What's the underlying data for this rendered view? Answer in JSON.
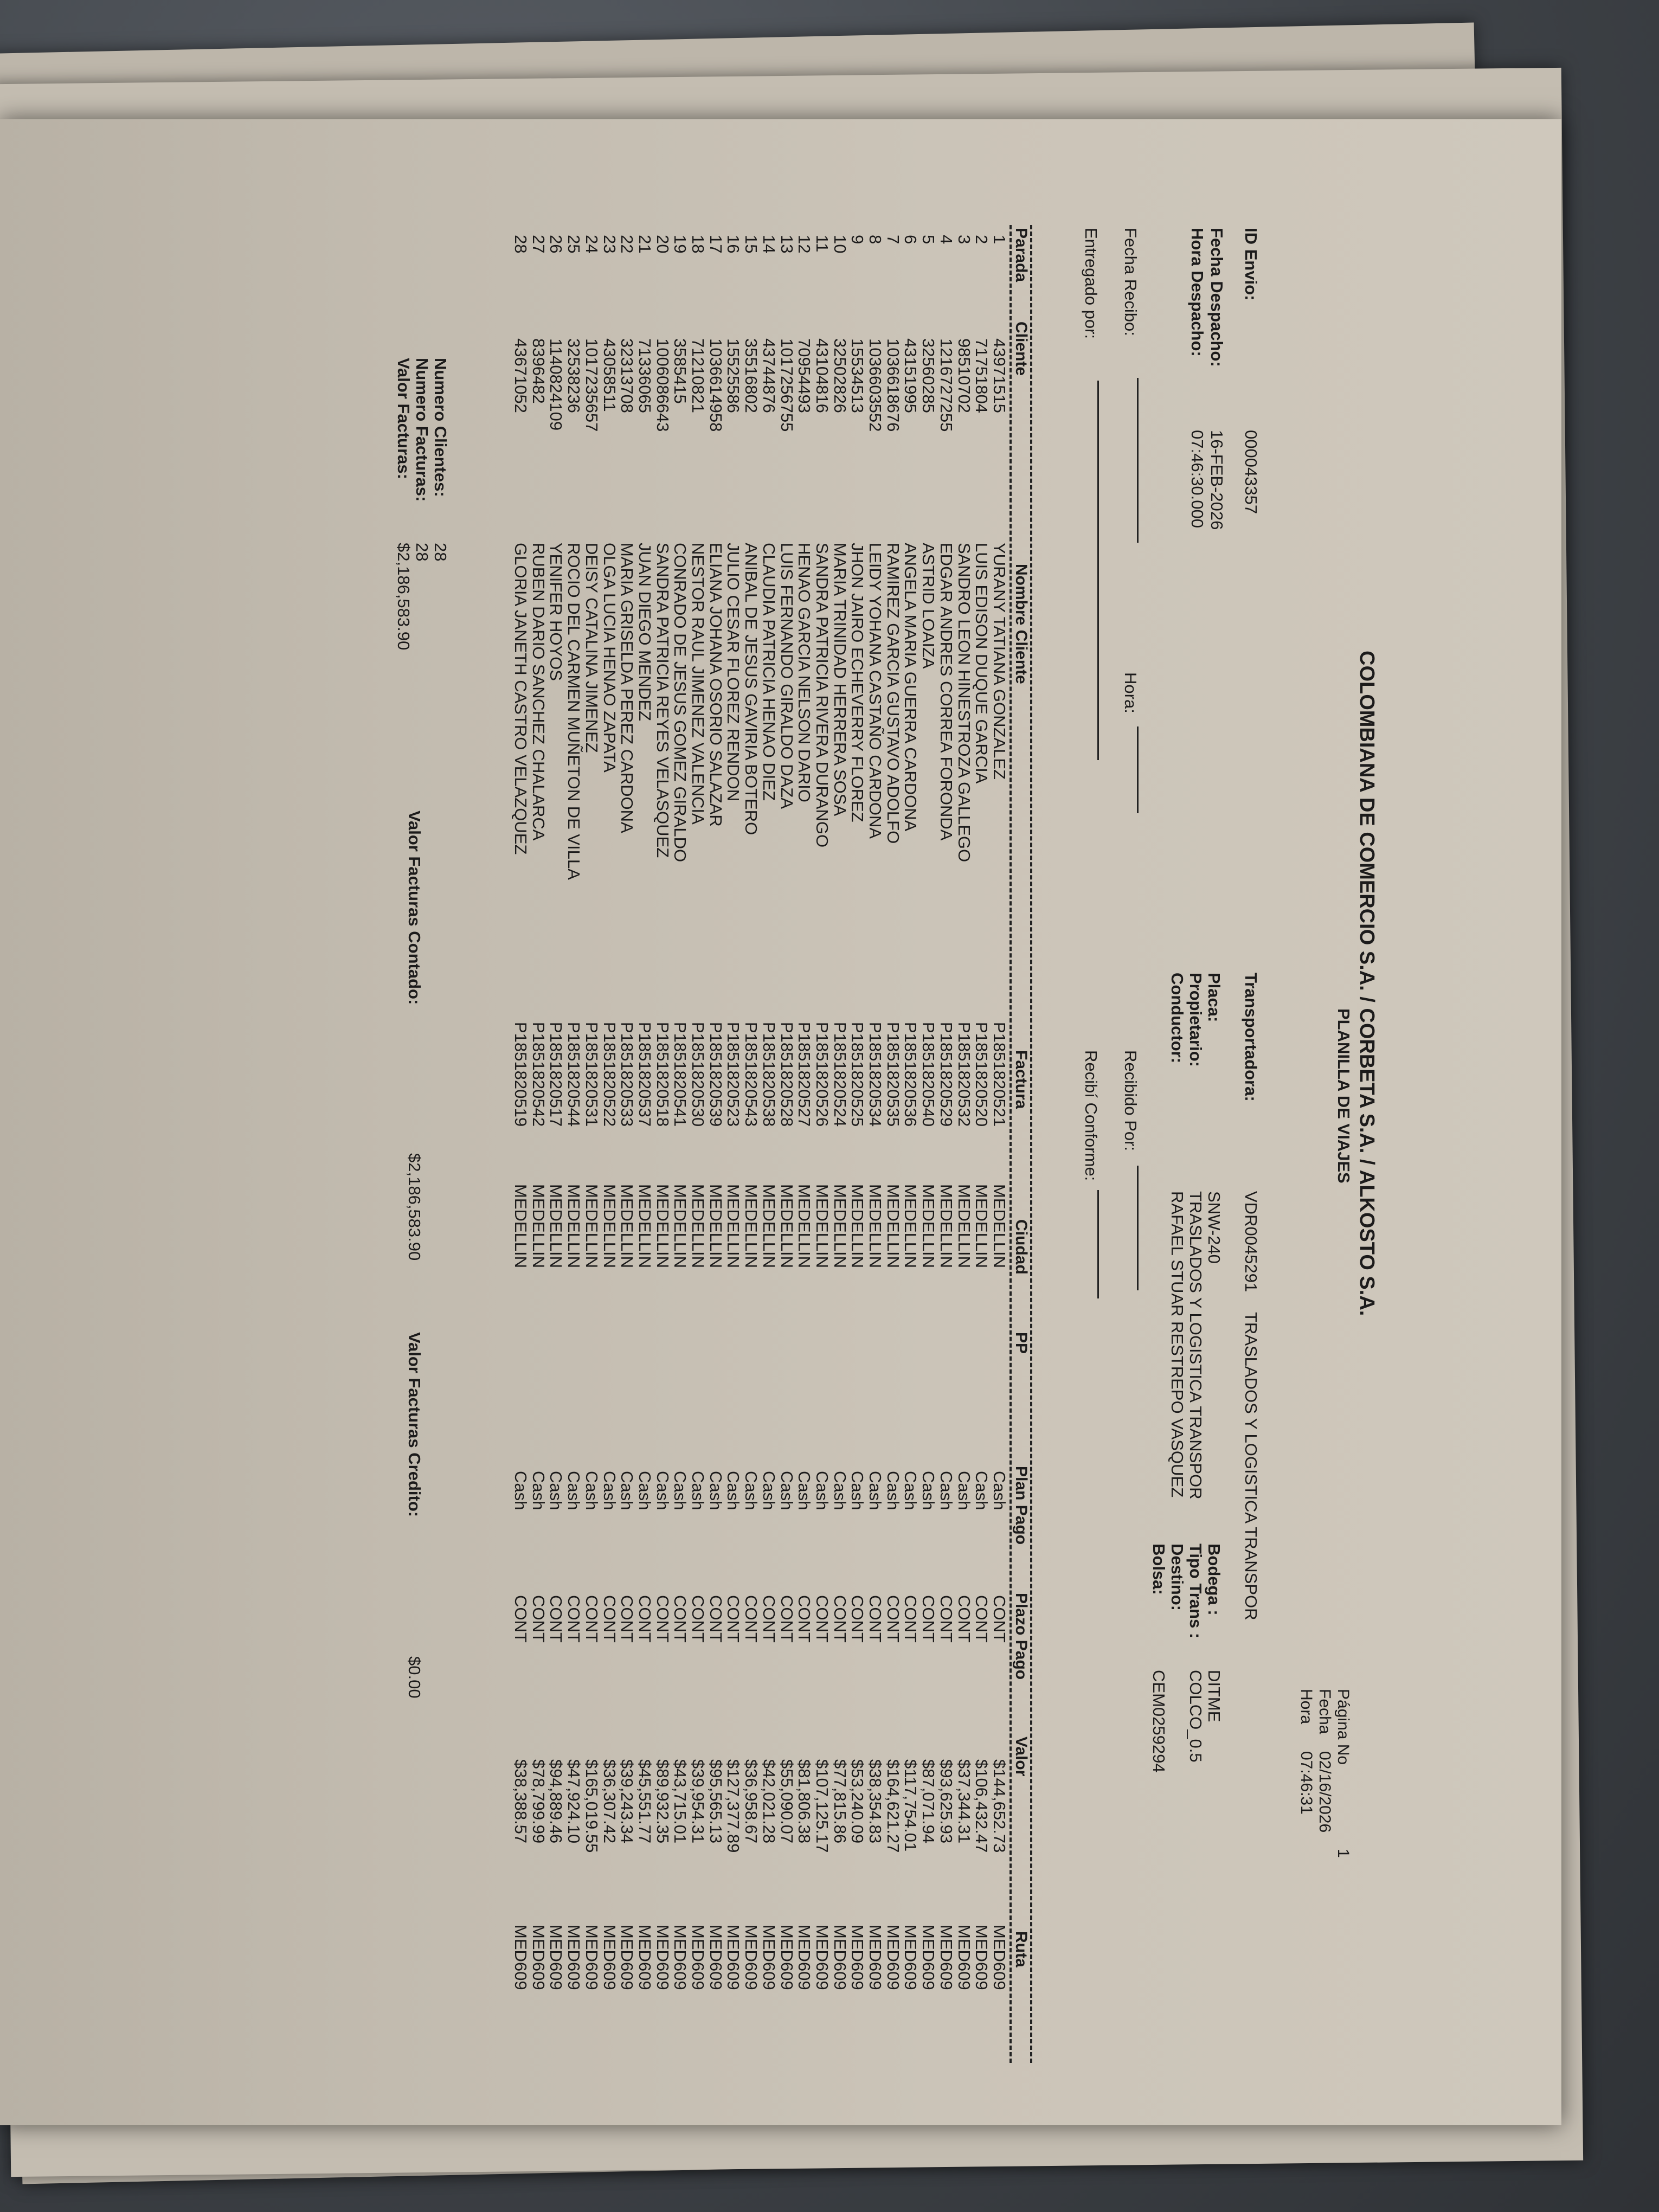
{
  "header": {
    "company": "COLOMBIANA DE COMERCIO S.A. / CORBETA S.A. / ALKOSTO S.A.",
    "title": "PLANILLA DE VIAJES",
    "pagina_label": "Página No",
    "pagina_value": "1",
    "fecha_label": "Fecha",
    "fecha_value": "02/16/2026",
    "hora_label": "Hora",
    "hora_value": "07:46:31"
  },
  "envio": {
    "id_label": "ID Envio:",
    "id_value": "000043357",
    "fecha_despacho_label": "Fecha Despacho:",
    "fecha_despacho_value": "16-FEB-2026",
    "hora_despacho_label": "Hora Despacho:",
    "hora_despacho_value": "07:46:30.000"
  },
  "transporte": {
    "transportadora_label": "Transportadora:",
    "transportadora_code": "VDR0045291",
    "transportadora_name": "TRASLADOS Y LOGISTICA TRANSPOR",
    "placa_label": "Placa:",
    "placa_value": "SNW-240",
    "propietario_label": "Propietario:",
    "propietario_value": "TRASLADOS Y LOGISTICA TRANSPOR",
    "conductor_label": "Conductor:",
    "conductor_value": "RAFAEL STUAR RESTREPO VASQUEZ",
    "bodega_label": "Bodega :",
    "bodega_value": "DITME",
    "tipo_trans_label": "Tipo Trans :",
    "tipo_trans_value": "COLCO_0.5",
    "destino_label": "Destino:",
    "bolsa_label": "Bolsa:",
    "bolsa_value": "CEM0259294"
  },
  "recibo": {
    "fecha_recibo_label": "Fecha Recibo:",
    "hora_label": "Hora:",
    "entregado_label": "Entregado por:",
    "recibido_label": "Recibido Por:",
    "conforme_label": "Recibí Conforme:"
  },
  "table": {
    "columns": [
      "Parada",
      "Cliente",
      "Nombre Cliente",
      "Factura",
      "Ciudad",
      "PP",
      "Plan Pago",
      "Plazo Pago",
      "Valor",
      "Ruta"
    ],
    "rows": [
      {
        "parada": "1",
        "cliente": "43971515",
        "nombre": "YURANY TATIANA GONZALEZ",
        "factura": "P1851820521",
        "ciudad": "MEDELLIN",
        "pp": "",
        "plan": "Cash",
        "plazo": "CONT",
        "valor": "$144,652.73",
        "ruta": "MED609"
      },
      {
        "parada": "2",
        "cliente": "71751804",
        "nombre": "LUIS EDISON DUQUE GARCIA",
        "factura": "P1851820520",
        "ciudad": "MEDELLIN",
        "pp": "",
        "plan": "Cash",
        "plazo": "CONT",
        "valor": "$106,432.47",
        "ruta": "MED609"
      },
      {
        "parada": "3",
        "cliente": "98510702",
        "nombre": "SANDRO LEON HINESTROZA GALLEGO",
        "factura": "P1851820532",
        "ciudad": "MEDELLIN",
        "pp": "",
        "plan": "Cash",
        "plazo": "CONT",
        "valor": "$37,344.31",
        "ruta": "MED609"
      },
      {
        "parada": "4",
        "cliente": "1216727255",
        "nombre": "EDGAR ANDRES CORREA FORONDA",
        "factura": "P1851820529",
        "ciudad": "MEDELLIN",
        "pp": "",
        "plan": "Cash",
        "plazo": "CONT",
        "valor": "$93,625.93",
        "ruta": "MED609"
      },
      {
        "parada": "5",
        "cliente": "32560285",
        "nombre": "ASTRID LOAIZA",
        "factura": "P1851820540",
        "ciudad": "MEDELLIN",
        "pp": "",
        "plan": "Cash",
        "plazo": "CONT",
        "valor": "$87,071.94",
        "ruta": "MED609"
      },
      {
        "parada": "6",
        "cliente": "43151995",
        "nombre": "ANGELA MARIA GUERRA CARDONA",
        "factura": "P1851820536",
        "ciudad": "MEDELLIN",
        "pp": "",
        "plan": "Cash",
        "plazo": "CONT",
        "valor": "$117,754.01",
        "ruta": "MED609"
      },
      {
        "parada": "7",
        "cliente": "1036618676",
        "nombre": "RAMIREZ GARCIA GUSTAVO ADOLFO",
        "factura": "P1851820535",
        "ciudad": "MEDELLIN",
        "pp": "",
        "plan": "Cash",
        "plazo": "CONT",
        "valor": "$164,621.27",
        "ruta": "MED609"
      },
      {
        "parada": "8",
        "cliente": "1036603552",
        "nombre": "LEIDY YOHANA CASTAÑO CARDONA",
        "factura": "P1851820534",
        "ciudad": "MEDELLIN",
        "pp": "",
        "plan": "Cash",
        "plazo": "CONT",
        "valor": "$38,354.83",
        "ruta": "MED609"
      },
      {
        "parada": "9",
        "cliente": "15534513",
        "nombre": "JHON JAIRO ECHEVERRY FLOREZ",
        "factura": "P1851820525",
        "ciudad": "MEDELLIN",
        "pp": "",
        "plan": "Cash",
        "plazo": "CONT",
        "valor": "$53,240.09",
        "ruta": "MED609"
      },
      {
        "parada": "10",
        "cliente": "32502826",
        "nombre": "MARIA TRINIDAD HERRERA SOSA",
        "factura": "P1851820524",
        "ciudad": "MEDELLIN",
        "pp": "",
        "plan": "Cash",
        "plazo": "CONT",
        "valor": "$77,815.86",
        "ruta": "MED609"
      },
      {
        "parada": "11",
        "cliente": "43104816",
        "nombre": "SANDRA PATRICIA RIVERA DURANGO",
        "factura": "P1851820526",
        "ciudad": "MEDELLIN",
        "pp": "",
        "plan": "Cash",
        "plazo": "CONT",
        "valor": "$107,125.17",
        "ruta": "MED609"
      },
      {
        "parada": "12",
        "cliente": "70954493",
        "nombre": "HENAO GARCIA NELSON DARIO",
        "factura": "P1851820527",
        "ciudad": "MEDELLIN",
        "pp": "",
        "plan": "Cash",
        "plazo": "CONT",
        "valor": "$81,806.38",
        "ruta": "MED609"
      },
      {
        "parada": "13",
        "cliente": "1017256755",
        "nombre": "LUIS FERNANDO GIRALDO DAZA",
        "factura": "P1851820528",
        "ciudad": "MEDELLIN",
        "pp": "",
        "plan": "Cash",
        "plazo": "CONT",
        "valor": "$55,090.07",
        "ruta": "MED609"
      },
      {
        "parada": "14",
        "cliente": "43744876",
        "nombre": "CLAUDIA PATRICIA HENAO DIEZ",
        "factura": "P1851820538",
        "ciudad": "MEDELLIN",
        "pp": "",
        "plan": "Cash",
        "plazo": "CONT",
        "valor": "$42,021.28",
        "ruta": "MED609"
      },
      {
        "parada": "15",
        "cliente": "35516802",
        "nombre": "ANIBAL DE JESUS GAVIRIA BOTERO",
        "factura": "P1851820543",
        "ciudad": "MEDELLIN",
        "pp": "",
        "plan": "Cash",
        "plazo": "CONT",
        "valor": "$36,958.67",
        "ruta": "MED609"
      },
      {
        "parada": "16",
        "cliente": "15525586",
        "nombre": "JULIO CESAR FLOREZ RENDON",
        "factura": "P1851820523",
        "ciudad": "MEDELLIN",
        "pp": "",
        "plan": "Cash",
        "plazo": "CONT",
        "valor": "$127,377.89",
        "ruta": "MED609"
      },
      {
        "parada": "17",
        "cliente": "1036614958",
        "nombre": "ELIANA JOHANA OSORIO SALAZAR",
        "factura": "P1851820539",
        "ciudad": "MEDELLIN",
        "pp": "",
        "plan": "Cash",
        "plazo": "CONT",
        "valor": "$95,565.13",
        "ruta": "MED609"
      },
      {
        "parada": "18",
        "cliente": "71210821",
        "nombre": "NESTOR RAUL JIMENEZ VALENCIA",
        "factura": "P1851820530",
        "ciudad": "MEDELLIN",
        "pp": "",
        "plan": "Cash",
        "plazo": "CONT",
        "valor": "$39,954.31",
        "ruta": "MED609"
      },
      {
        "parada": "19",
        "cliente": "3585415",
        "nombre": "CONRADO DE JESUS GOMEZ GIRALDO",
        "factura": "P1851820541",
        "ciudad": "MEDELLIN",
        "pp": "",
        "plan": "Cash",
        "plazo": "CONT",
        "valor": "$43,715.01",
        "ruta": "MED609"
      },
      {
        "parada": "20",
        "cliente": "1006086643",
        "nombre": "SANDRA PATRICIA REYES VELASQUEZ",
        "factura": "P1851820518",
        "ciudad": "MEDELLIN",
        "pp": "",
        "plan": "Cash",
        "plazo": "CONT",
        "valor": "$89,932.35",
        "ruta": "MED609"
      },
      {
        "parada": "21",
        "cliente": "71336065",
        "nombre": "JUAN DIEGO MENDEZ",
        "factura": "P1851820537",
        "ciudad": "MEDELLIN",
        "pp": "",
        "plan": "Cash",
        "plazo": "CONT",
        "valor": "$45,551.77",
        "ruta": "MED609"
      },
      {
        "parada": "22",
        "cliente": "32313708",
        "nombre": "MARIA GRISELDA PEREZ CARDONA",
        "factura": "P1851820533",
        "ciudad": "MEDELLIN",
        "pp": "",
        "plan": "Cash",
        "plazo": "CONT",
        "valor": "$39,243.34",
        "ruta": "MED609"
      },
      {
        "parada": "23",
        "cliente": "43058511",
        "nombre": "OLGA LUCIA HENAO ZAPATA",
        "factura": "P1851820522",
        "ciudad": "MEDELLIN",
        "pp": "",
        "plan": "Cash",
        "plazo": "CONT",
        "valor": "$36,307.42",
        "ruta": "MED609"
      },
      {
        "parada": "24",
        "cliente": "1017235657",
        "nombre": "DEISY CATALINA JIMENEZ",
        "factura": "P1851820531",
        "ciudad": "MEDELLIN",
        "pp": "",
        "plan": "Cash",
        "plazo": "CONT",
        "valor": "$165,019.55",
        "ruta": "MED609"
      },
      {
        "parada": "25",
        "cliente": "32538236",
        "nombre": "ROCIO DEL CARMEN MUÑETON DE VILLA",
        "factura": "P1851820544",
        "ciudad": "MEDELLIN",
        "pp": "",
        "plan": "Cash",
        "plazo": "CONT",
        "valor": "$47,924.10",
        "ruta": "MED609"
      },
      {
        "parada": "26",
        "cliente": "1140824109",
        "nombre": "YENIFER HOYOS",
        "factura": "P1851820517",
        "ciudad": "MEDELLIN",
        "pp": "",
        "plan": "Cash",
        "plazo": "CONT",
        "valor": "$94,889.46",
        "ruta": "MED609"
      },
      {
        "parada": "27",
        "cliente": "8396482",
        "nombre": "RUBEN DARIO SANCHEZ CHALARCA",
        "factura": "P1851820542",
        "ciudad": "MEDELLIN",
        "pp": "",
        "plan": "Cash",
        "plazo": "CONT",
        "valor": "$78,799.99",
        "ruta": "MED609"
      },
      {
        "parada": "28",
        "cliente": "43671052",
        "nombre": "GLORIA JANETH CASTRO VELAZQUEZ",
        "factura": "P1851820519",
        "ciudad": "MEDELLIN",
        "pp": "",
        "plan": "Cash",
        "plazo": "CONT",
        "valor": "$38,388.57",
        "ruta": "MED609"
      }
    ]
  },
  "totals": {
    "numero_clientes_label": "Numero Clientes:",
    "numero_clientes_value": "28",
    "numero_facturas_label": "Numero Facturas:",
    "numero_facturas_value": "28",
    "valor_facturas_label": "Valor Facturas:",
    "valor_facturas_value": "$2,186,583.90",
    "contado_label": "Valor Facturas Contado:",
    "contado_value": "$2,186,583.90",
    "credito_label": "Valor Facturas Credito:",
    "credito_value": "$0.00"
  },
  "colors": {
    "paper": "#cbc4b8",
    "ink": "#1c1b1b",
    "background": "#3f4348"
  }
}
